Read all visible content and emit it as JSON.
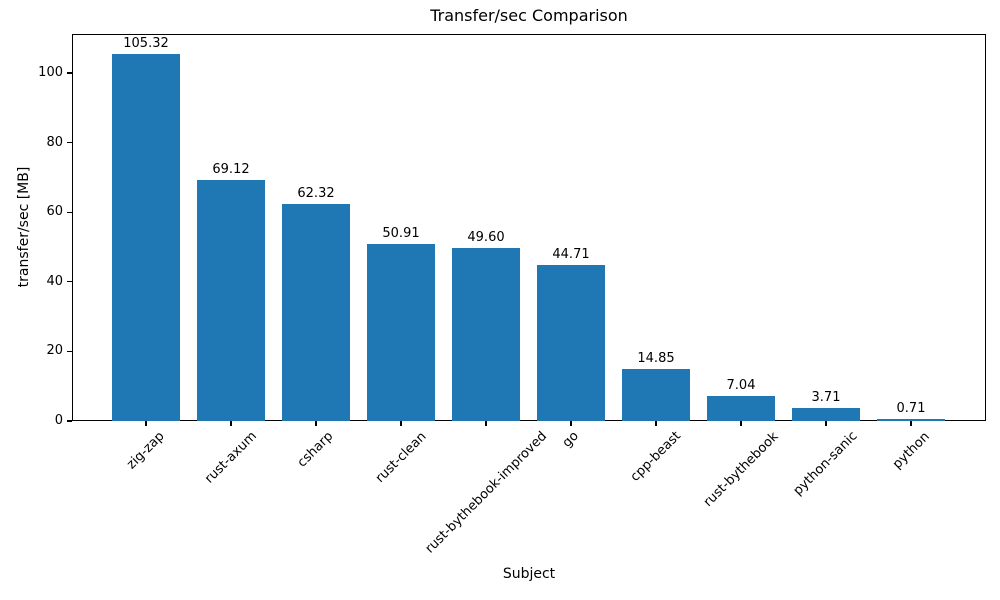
{
  "chart_data": {
    "type": "bar",
    "title": "Transfer/sec Comparison",
    "xlabel": "Subject",
    "ylabel": "transfer/sec [MB]",
    "categories": [
      "zig-zap",
      "rust-axum",
      "csharp",
      "rust-clean",
      "rust-bythebook-improved",
      "go",
      "cpp-beast",
      "rust-bythebook",
      "python-sanic",
      "python"
    ],
    "values": [
      105.32,
      69.12,
      62.32,
      50.91,
      49.6,
      44.71,
      14.85,
      7.04,
      3.71,
      0.71
    ],
    "value_labels": [
      "105.32",
      "69.12",
      "62.32",
      "50.91",
      "49.60",
      "44.71",
      "14.85",
      "7.04",
      "3.71",
      "0.71"
    ],
    "yticks": [
      0,
      20,
      40,
      60,
      80,
      100
    ],
    "ylim": [
      0,
      111.2
    ],
    "bar_color": "#1f77b4",
    "text_color": "#000000",
    "grid": false,
    "legend": "none",
    "x_tick_rotation_deg": 45
  }
}
